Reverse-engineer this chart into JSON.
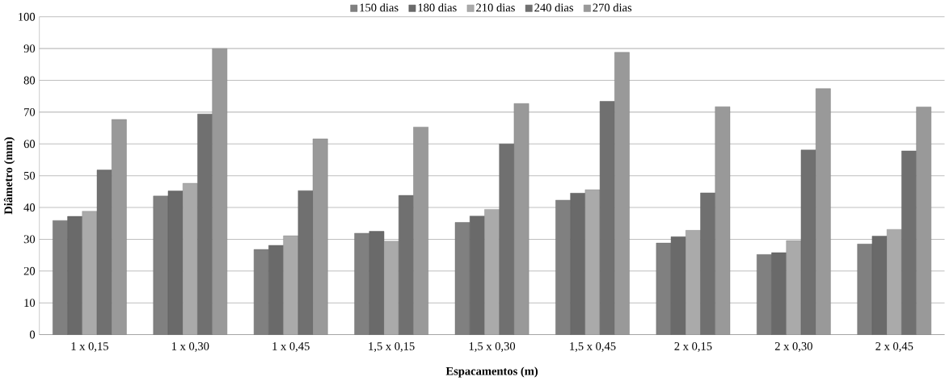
{
  "chart_data": {
    "type": "bar",
    "xlabel": "Espacamentos (m)",
    "ylabel": "Diâmetro (mm)",
    "categories": [
      "1 x 0,15",
      "1 x 0,30",
      "1 x 0,45",
      "1,5 x 0,15",
      "1,5 x 0,30",
      "1,5 x 0,45",
      "2 x 0,15",
      "2 x 0,30",
      "2 x 0,45"
    ],
    "series": [
      {
        "name": "150 dias",
        "color": "#808080",
        "values": [
          35.9,
          43.6,
          26.8,
          31.9,
          35.3,
          42.3,
          28.8,
          25.2,
          28.5
        ]
      },
      {
        "name": "180 dias",
        "color": "#6a6a6a",
        "values": [
          37.2,
          45.2,
          28.1,
          32.5,
          37.3,
          44.5,
          30.8,
          25.8,
          31.0
        ]
      },
      {
        "name": "210 dias",
        "color": "#aaaaaa",
        "values": [
          38.8,
          47.6,
          31.1,
          29.4,
          39.4,
          45.6,
          32.8,
          29.6,
          33.1
        ]
      },
      {
        "name": "240 dias",
        "color": "#707070",
        "values": [
          51.8,
          69.4,
          45.3,
          43.8,
          60.0,
          73.4,
          44.6,
          58.1,
          57.8
        ]
      },
      {
        "name": "270 dias",
        "color": "#999999",
        "values": [
          67.7,
          90.0,
          61.6,
          65.3,
          72.7,
          88.8,
          71.7,
          77.4,
          71.6
        ]
      }
    ],
    "ylim": [
      0,
      100
    ],
    "yticks": [
      0,
      10,
      20,
      30,
      40,
      50,
      60,
      70,
      80,
      90,
      100
    ],
    "grid": "y",
    "legend": "top"
  }
}
